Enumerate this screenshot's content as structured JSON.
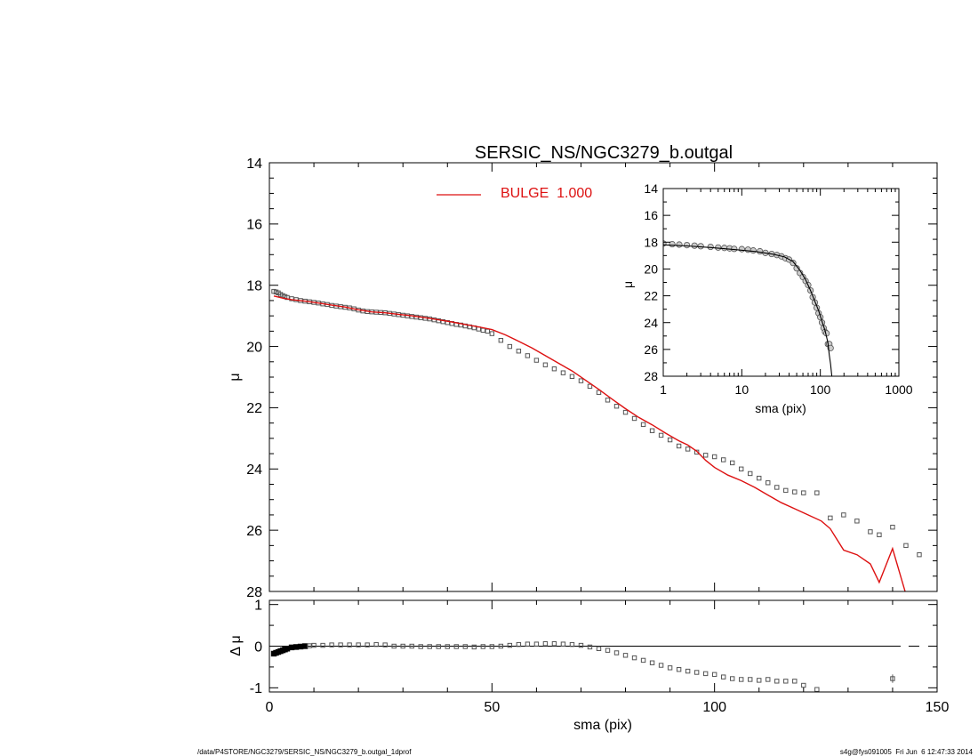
{
  "footer": {
    "left_path": "/data/P4STORE/NGC3279/SERSIC_NS/NGC3279_b.outgal_1dprof",
    "right_stamp": "s4g@fys091005  Fri Jun  6 12:47:33 2014"
  },
  "colors": {
    "model": "#dd1111",
    "data": "#555555",
    "axes": "#000000"
  },
  "chart_data": [
    {
      "type": "scatter",
      "panel": "main",
      "title": "SERSIC_NS/NGC3279_b.outgal",
      "xlabel": "",
      "ylabel": "μ",
      "xlim": [
        0,
        150
      ],
      "ylim": [
        28,
        14
      ],
      "y_inverted": true,
      "xticks": [
        0,
        50,
        100,
        150
      ],
      "yticks": [
        14,
        16,
        18,
        20,
        22,
        24,
        26,
        28
      ],
      "legend": {
        "placement": "top-center",
        "label": "BULGE  1.000"
      },
      "series": [
        {
          "role": "observed",
          "marker": "square",
          "x": [
            1,
            1.5,
            2,
            2.5,
            3,
            3.5,
            4,
            5,
            6,
            7,
            8,
            9,
            10,
            11,
            12,
            13,
            14,
            15,
            16,
            17,
            18,
            19,
            20,
            21,
            22,
            23,
            24,
            25,
            26,
            27,
            28,
            29,
            30,
            31,
            32,
            33,
            34,
            35,
            36,
            37,
            38,
            39,
            40,
            41,
            42,
            43,
            44,
            45,
            46,
            47,
            48,
            49,
            50,
            52,
            54,
            56,
            58,
            60,
            62,
            64,
            66,
            68,
            70,
            72,
            74,
            76,
            78,
            80,
            82,
            84,
            86,
            88,
            90,
            92,
            94,
            96,
            98,
            100,
            102,
            104,
            106,
            108,
            110,
            112,
            114,
            116,
            118,
            120,
            123,
            126,
            129,
            132,
            135,
            137,
            140,
            143,
            146
          ],
          "y": [
            18.2,
            18.22,
            18.25,
            18.3,
            18.34,
            18.37,
            18.4,
            18.44,
            18.47,
            18.5,
            18.52,
            18.54,
            18.56,
            18.58,
            18.61,
            18.63,
            18.66,
            18.68,
            18.7,
            18.72,
            18.74,
            18.77,
            18.81,
            18.84,
            18.86,
            18.87,
            18.88,
            18.89,
            18.9,
            18.92,
            18.94,
            18.96,
            18.98,
            19.0,
            19.02,
            19.04,
            19.06,
            19.08,
            19.1,
            19.13,
            19.16,
            19.19,
            19.22,
            19.25,
            19.28,
            19.3,
            19.33,
            19.36,
            19.39,
            19.43,
            19.47,
            19.5,
            19.58,
            19.8,
            20.0,
            20.15,
            20.3,
            20.45,
            20.6,
            20.73,
            20.86,
            20.98,
            21.12,
            21.3,
            21.5,
            21.75,
            21.95,
            22.15,
            22.35,
            22.55,
            22.75,
            22.9,
            23.05,
            23.25,
            23.35,
            23.45,
            23.55,
            23.6,
            23.7,
            23.8,
            24.0,
            24.15,
            24.3,
            24.45,
            24.6,
            24.7,
            24.75,
            24.78,
            24.78,
            25.6,
            25.5,
            25.7,
            26.05,
            26.15,
            25.9,
            26.5,
            26.8
          ]
        },
        {
          "role": "model",
          "name": "BULGE  1.000",
          "marker": "line",
          "x": [
            1,
            3,
            5,
            8,
            11,
            14,
            17,
            20,
            23,
            26,
            29,
            32,
            35,
            38,
            41,
            44,
            47,
            50,
            53,
            56,
            59,
            62,
            65,
            68,
            71,
            74,
            77,
            80,
            83,
            86,
            89,
            92,
            94,
            96,
            98,
            100,
            103,
            106,
            109,
            112,
            115,
            118,
            121,
            124,
            126,
            129,
            132,
            135,
            137,
            140,
            143
          ],
          "y": [
            18.35,
            18.42,
            18.47,
            18.52,
            18.58,
            18.65,
            18.71,
            18.8,
            18.87,
            18.9,
            18.95,
            19.0,
            19.06,
            19.13,
            19.2,
            19.28,
            19.36,
            19.45,
            19.62,
            19.83,
            20.05,
            20.3,
            20.55,
            20.8,
            21.1,
            21.4,
            21.72,
            22.03,
            22.32,
            22.56,
            22.83,
            23.08,
            23.22,
            23.42,
            23.72,
            23.95,
            24.2,
            24.38,
            24.6,
            24.85,
            25.1,
            25.3,
            25.5,
            25.7,
            25.95,
            26.65,
            26.8,
            27.1,
            27.7,
            26.6,
            28.1
          ]
        }
      ]
    },
    {
      "type": "scatter",
      "panel": "residual",
      "xlabel": "sma (pix)",
      "ylabel": "Δ μ",
      "xlim": [
        0,
        150
      ],
      "ylim": [
        -1.1,
        1.1
      ],
      "xticks": [
        0,
        50,
        100,
        150
      ],
      "yticks": [
        1,
        0,
        -1
      ],
      "zero_line": {
        "x": [
          0,
          146
        ],
        "y": 0,
        "gap": [
          143,
          146
        ]
      },
      "series": [
        {
          "role": "residual",
          "marker": "square",
          "x": [
            1,
            1.5,
            2,
            2.5,
            3,
            3.5,
            4,
            5,
            6,
            7,
            8,
            9,
            10,
            12,
            14,
            16,
            18,
            20,
            22,
            24,
            26,
            28,
            30,
            32,
            34,
            36,
            38,
            40,
            42,
            44,
            46,
            48,
            50,
            52,
            54,
            56,
            58,
            60,
            62,
            64,
            66,
            68,
            70,
            72,
            74,
            76,
            78,
            80,
            82,
            84,
            86,
            88,
            90,
            92,
            94,
            96,
            98,
            100,
            102,
            104,
            106,
            108,
            110,
            112,
            114,
            116,
            118,
            120,
            123,
            140
          ],
          "y": [
            -0.18,
            -0.16,
            -0.14,
            -0.12,
            -0.1,
            -0.08,
            -0.06,
            -0.03,
            -0.02,
            -0.01,
            0.0,
            0.01,
            0.02,
            0.02,
            0.03,
            0.03,
            0.03,
            0.03,
            0.03,
            0.04,
            0.03,
            0.0,
            0.0,
            0.0,
            -0.01,
            -0.01,
            -0.01,
            -0.01,
            -0.01,
            -0.01,
            -0.02,
            -0.01,
            -0.01,
            0.0,
            0.02,
            0.04,
            0.05,
            0.05,
            0.06,
            0.06,
            0.05,
            0.04,
            0.02,
            -0.02,
            -0.06,
            -0.1,
            -0.16,
            -0.22,
            -0.28,
            -0.34,
            -0.4,
            -0.46,
            -0.52,
            -0.56,
            -0.6,
            -0.63,
            -0.66,
            -0.68,
            -0.74,
            -0.78,
            -0.8,
            -0.8,
            -0.82,
            -0.8,
            -0.84,
            -0.84,
            -0.84,
            -0.94,
            -1.04,
            -0.78
          ],
          "error_bar_x": [
            140
          ],
          "error_bar": [
            0.1
          ]
        }
      ]
    },
    {
      "type": "scatter",
      "panel": "inset",
      "xlabel": "sma (pix)",
      "ylabel": "μ",
      "xscale": "log",
      "xlim": [
        1,
        1000
      ],
      "ylim": [
        28,
        14
      ],
      "y_inverted": true,
      "xticks": [
        1,
        10,
        100,
        1000
      ],
      "yticks": [
        14,
        16,
        18,
        20,
        22,
        24,
        26,
        28
      ],
      "series": [
        {
          "role": "observed",
          "marker": "circle",
          "x": [
            1,
            1.3,
            1.6,
            2,
            2.5,
            3,
            4,
            5,
            6,
            7,
            8,
            10,
            12,
            14,
            17,
            20,
            24,
            28,
            32,
            36,
            40,
            45,
            50,
            55,
            60,
            65,
            70,
            75,
            80,
            85,
            90,
            95,
            100,
            105,
            110,
            115,
            120,
            125,
            130,
            135
          ],
          "y": [
            18.1,
            18.15,
            18.18,
            18.22,
            18.26,
            18.3,
            18.35,
            18.4,
            18.43,
            18.46,
            18.5,
            18.52,
            18.56,
            18.62,
            18.68,
            18.8,
            18.88,
            18.96,
            19.06,
            19.2,
            19.3,
            19.55,
            19.95,
            20.3,
            20.6,
            20.9,
            21.2,
            21.6,
            22.1,
            22.5,
            22.9,
            23.3,
            23.6,
            24.0,
            24.4,
            24.7,
            24.8,
            25.6,
            25.6,
            25.9
          ]
        },
        {
          "role": "model",
          "marker": "line",
          "x": [
            1,
            2,
            4,
            8,
            15,
            25,
            35,
            45,
            55,
            65,
            75,
            85,
            95,
            105,
            115,
            125,
            130,
            135,
            140
          ],
          "y": [
            18.2,
            18.28,
            18.4,
            18.55,
            18.7,
            18.9,
            19.1,
            19.45,
            20.1,
            20.8,
            21.6,
            22.4,
            23.1,
            23.9,
            24.6,
            25.5,
            26.4,
            27.1,
            28.0
          ]
        }
      ]
    }
  ]
}
